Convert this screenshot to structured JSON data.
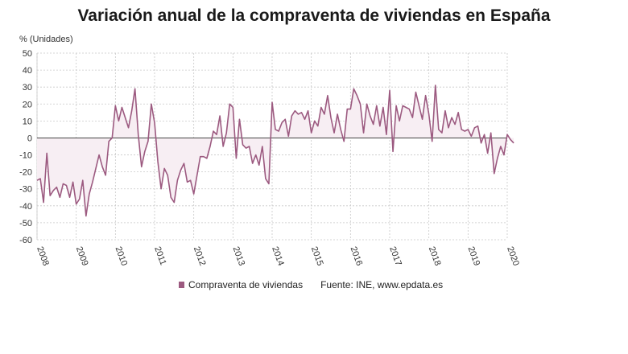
{
  "title": "Variación anual de la compraventa de viviendas en España",
  "legend_label": "Compraventa de viviendas",
  "source": "Fuente: INE, www.epdata.es",
  "colors": {
    "line": "#9c5a80",
    "fill": "#f7eef3",
    "grid": "#c8c8c8",
    "zero": "#444444"
  },
  "chart_data": {
    "type": "area",
    "ylabel": "% (Unidades)",
    "ylim": [
      -60,
      50
    ],
    "yticks": [
      50,
      40,
      30,
      20,
      10,
      0,
      -10,
      -20,
      -30,
      -40,
      -50,
      -60
    ],
    "xlim": [
      2008,
      2020
    ],
    "xticks": [
      "2008",
      "2009",
      "2010",
      "2011",
      "2012",
      "2013",
      "2014",
      "2015",
      "2016",
      "2017",
      "2018",
      "2019",
      "2020"
    ],
    "grid": true,
    "legend_position": "bottom",
    "series": [
      {
        "name": "Compraventa de viviendas",
        "x_start": "2008-01",
        "frequency": "monthly",
        "values": [
          -25,
          -24,
          -38,
          -9,
          -34,
          -31,
          -29,
          -35,
          -27,
          -28,
          -35,
          -26,
          -39,
          -36,
          -25,
          -46,
          -33,
          -26,
          -18,
          -10,
          -17,
          -22,
          -2,
          0,
          19,
          10,
          18,
          12,
          6,
          16,
          29,
          2,
          -17,
          -8,
          -2,
          20,
          9,
          -14,
          -30,
          -18,
          -22,
          -35,
          -38,
          -25,
          -19,
          -15,
          -26,
          -25,
          -33,
          -22,
          -11,
          -11,
          -12,
          -5,
          4,
          2,
          13,
          -5,
          3,
          20,
          18,
          -12,
          11,
          -4,
          -6,
          -5,
          -15,
          -10,
          -16,
          -5,
          -24,
          -27,
          21,
          5,
          4,
          9,
          11,
          1,
          13,
          16,
          14,
          15,
          11,
          16,
          3,
          10,
          7,
          18,
          14,
          25,
          12,
          3,
          14,
          5,
          -2,
          17,
          17,
          29,
          25,
          20,
          3,
          20,
          13,
          8,
          19,
          7,
          18,
          2,
          28,
          -8,
          19,
          10,
          19,
          18,
          17,
          12,
          27,
          19,
          11,
          25,
          14,
          -2,
          31,
          5,
          3,
          16,
          6,
          12,
          8,
          15,
          5,
          4,
          5,
          1,
          6,
          7,
          -3,
          2,
          -9,
          3,
          -21,
          -12,
          -5,
          -10,
          2,
          -1,
          -3
        ]
      }
    ]
  }
}
